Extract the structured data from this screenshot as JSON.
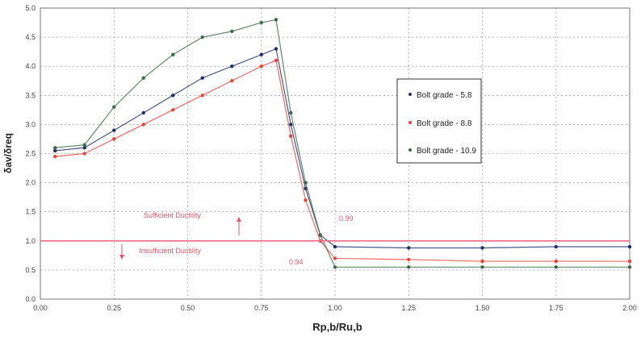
{
  "chart_data": {
    "type": "scatter",
    "title": "",
    "xlabel": "Rp,b/Ru,b",
    "ylabel": "δav/δreq",
    "xlim": [
      0,
      2
    ],
    "ylim": [
      0,
      5
    ],
    "x_ticks": [
      "0.00",
      "0.25",
      "0.50",
      "0.75",
      "1.00",
      "1.25",
      "1.50",
      "1.75",
      "2.00"
    ],
    "y_ticks": [
      "0.0",
      "0.5",
      "1.0",
      "1.5",
      "2.0",
      "2.5",
      "3.0",
      "3.5",
      "4.0",
      "4.5",
      "5.0"
    ],
    "grid": true,
    "legend_position": "right",
    "series": [
      {
        "name": "Bolt grade - 5.8",
        "color": "#1f2f6b",
        "x": [
          0.05,
          0.15,
          0.25,
          0.35,
          0.45,
          0.55,
          0.65,
          0.75,
          0.8,
          0.85,
          0.9,
          0.95,
          1.0,
          1.25,
          1.5,
          1.75,
          2.0
        ],
        "y": [
          2.55,
          2.6,
          2.9,
          3.2,
          3.5,
          3.8,
          4.0,
          4.2,
          4.3,
          3.0,
          1.9,
          1.1,
          0.9,
          0.88,
          0.88,
          0.9,
          0.9
        ]
      },
      {
        "name": "Bolt grade - 8.8",
        "color": "#e8453c",
        "x": [
          0.05,
          0.15,
          0.25,
          0.35,
          0.45,
          0.55,
          0.65,
          0.75,
          0.8,
          0.85,
          0.9,
          0.95,
          1.0,
          1.25,
          1.5,
          1.75,
          2.0
        ],
        "y": [
          2.45,
          2.5,
          2.75,
          3.0,
          3.25,
          3.5,
          3.75,
          4.0,
          4.1,
          2.8,
          1.7,
          1.0,
          0.7,
          0.68,
          0.65,
          0.65,
          0.65
        ]
      },
      {
        "name": "Bolt grade - 10.9",
        "color": "#3d6b4a",
        "x": [
          0.05,
          0.15,
          0.25,
          0.35,
          0.45,
          0.55,
          0.65,
          0.75,
          0.8,
          0.85,
          0.9,
          0.95,
          1.0,
          1.25,
          1.5,
          1.75,
          2.0
        ],
        "y": [
          2.6,
          2.65,
          3.3,
          3.8,
          4.2,
          4.5,
          4.6,
          4.75,
          4.8,
          3.2,
          2.0,
          1.1,
          0.55,
          0.55,
          0.55,
          0.55,
          0.55
        ]
      }
    ],
    "reference_line": {
      "y": 1.0,
      "color": "#f06a8a"
    },
    "annotations": {
      "sufficient": "Sufficient Ductility",
      "insufficient": "Insufficient Ductility",
      "val_upper": "0.99",
      "val_lower": "0.94"
    }
  }
}
